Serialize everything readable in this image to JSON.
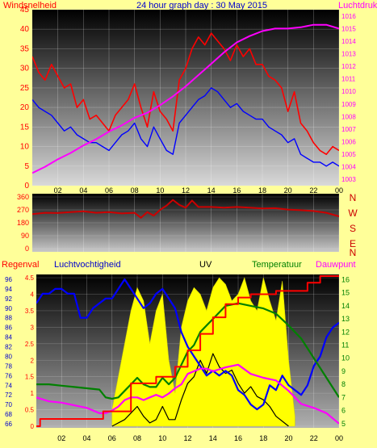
{
  "header": {
    "left_label": "Windsnelheid",
    "title": "24 hour graph day : 30 May 2015",
    "right_label": "Luchtdruk"
  },
  "lower_header": {
    "rain_label": "Regenval",
    "humidity_label": "Luchtvochtigheid",
    "uv_label": "UV",
    "temp_label": "Temperatuur",
    "dew_label": "Dauwpunt"
  },
  "colors": {
    "background": "#ffff99",
    "wind_gust": "#ff0000",
    "wind_avg": "#0000ff",
    "pressure": "#ff00ff",
    "direction": "#cc0000",
    "humidity": "#0000ff",
    "uv": "#ffff00",
    "temperature": "#008000",
    "dewpoint": "#ff00ff",
    "rain": "#ff0000",
    "solar": "#000000"
  },
  "chart_data": [
    {
      "type": "line",
      "x_ticks": [
        "02",
        "04",
        "06",
        "08",
        "10",
        "12",
        "14",
        "16",
        "18",
        "20",
        "22",
        "00"
      ],
      "ylabel": "Windsnelheid",
      "ylim": [
        0,
        45
      ],
      "y_ticks": [
        0,
        5,
        10,
        15,
        20,
        25,
        30,
        35,
        40,
        45
      ],
      "y2label": "Luchtdruk",
      "y2lim": [
        1002.5,
        1016.5
      ],
      "y2_ticks": [
        1003,
        1004,
        1005,
        1006,
        1007,
        1008,
        1009,
        1010,
        1011,
        1012,
        1013,
        1014,
        1015,
        1016
      ],
      "series": [
        {
          "key": "gust",
          "x": [
            0,
            0.5,
            1,
            1.5,
            2,
            2.5,
            3,
            3.5,
            4,
            4.5,
            5,
            5.5,
            6,
            6.5,
            7,
            7.5,
            8,
            8.5,
            9,
            9.5,
            10,
            10.5,
            11,
            11.5,
            12,
            12.5,
            13,
            13.5,
            14,
            14.5,
            15,
            15.5,
            16,
            16.5,
            17,
            17.5,
            18,
            18.5,
            19,
            19.5,
            20,
            20.5,
            21,
            21.5,
            22,
            22.5,
            23,
            23.5,
            24
          ],
          "values": [
            33,
            29,
            27,
            31,
            28,
            25,
            26,
            20,
            22,
            17,
            18,
            16,
            14,
            18,
            20,
            22,
            26,
            20,
            15,
            24,
            19,
            17,
            14,
            27,
            30,
            35,
            38,
            36,
            39,
            37,
            35,
            32,
            36,
            33,
            35,
            31,
            31,
            28,
            27,
            25,
            19,
            24,
            16,
            14,
            11,
            9,
            8,
            10,
            9
          ]
        },
        {
          "key": "avg",
          "x": [
            0,
            0.5,
            1,
            1.5,
            2,
            2.5,
            3,
            3.5,
            4,
            4.5,
            5,
            5.5,
            6,
            6.5,
            7,
            7.5,
            8,
            8.5,
            9,
            9.5,
            10,
            10.5,
            11,
            11.5,
            12,
            12.5,
            13,
            13.5,
            14,
            14.5,
            15,
            15.5,
            16,
            16.5,
            17,
            17.5,
            18,
            18.5,
            19,
            19.5,
            20,
            20.5,
            21,
            21.5,
            22,
            22.5,
            23,
            23.5,
            24
          ],
          "values": [
            22,
            20,
            19,
            18,
            16,
            14,
            15,
            13,
            12,
            11,
            11,
            10,
            9,
            11,
            13,
            14,
            16,
            12,
            10,
            15,
            12,
            9,
            8,
            16,
            18,
            20,
            22,
            23,
            25,
            24,
            22,
            20,
            21,
            19,
            18,
            17,
            17,
            15,
            14,
            13,
            11,
            12,
            8,
            7,
            6,
            6,
            5,
            6,
            5
          ]
        },
        {
          "key": "pressure",
          "x": [
            0,
            1,
            2,
            3,
            4,
            5,
            6,
            7,
            8,
            9,
            10,
            11,
            12,
            13,
            14,
            15,
            16,
            17,
            18,
            19,
            20,
            21,
            22,
            23,
            24
          ],
          "values": [
            1003.5,
            1004.0,
            1004.6,
            1005.1,
            1005.7,
            1006.2,
            1006.8,
            1007.3,
            1007.9,
            1008.3,
            1008.9,
            1009.6,
            1010.4,
            1011.3,
            1012.2,
            1013.1,
            1013.9,
            1014.4,
            1014.8,
            1015.0,
            1015.0,
            1015.1,
            1015.3,
            1015.3,
            1015.0
          ]
        }
      ]
    },
    {
      "type": "line",
      "x_ticks": [
        "02",
        "04",
        "06",
        "08",
        "10",
        "12",
        "14",
        "16",
        "18",
        "20",
        "22",
        "00"
      ],
      "y_ticks": [
        0,
        90,
        180,
        270,
        360
      ],
      "ylim": [
        0,
        360
      ],
      "direction_labels": [
        "N",
        "W",
        "S",
        "E",
        "N"
      ],
      "series": [
        {
          "key": "direction",
          "x": [
            0,
            1,
            2,
            3,
            4,
            5,
            6,
            7,
            8,
            8.5,
            9,
            9.5,
            10,
            10.5,
            11,
            11.5,
            12,
            12.5,
            13,
            14,
            15,
            16,
            17,
            18,
            19,
            20,
            21,
            22,
            23,
            24
          ],
          "values": [
            240,
            250,
            248,
            255,
            260,
            250,
            255,
            245,
            250,
            215,
            255,
            230,
            270,
            300,
            340,
            305,
            285,
            335,
            290,
            290,
            285,
            290,
            285,
            280,
            282,
            272,
            268,
            262,
            250,
            225
          ]
        }
      ]
    },
    {
      "type": "area",
      "x_ticks": [
        "02",
        "04",
        "06",
        "08",
        "10",
        "12",
        "14",
        "16",
        "18",
        "20",
        "22",
        "00"
      ],
      "rain_ticks": [
        0,
        0.5,
        1,
        1.5,
        2,
        2.5,
        3,
        3.5,
        4,
        4.5
      ],
      "rain_lim": [
        0,
        4.6
      ],
      "humidity_ticks": [
        66,
        68,
        70,
        72,
        74,
        76,
        78,
        80,
        82,
        84,
        86,
        88,
        90,
        92,
        94,
        96
      ],
      "humidity_lim": [
        65.5,
        97
      ],
      "temp_ticks": [
        5,
        6,
        7,
        8,
        9,
        10,
        11,
        12,
        13,
        14,
        15,
        16
      ],
      "temp_lim": [
        4.8,
        16.4
      ],
      "series": [
        {
          "key": "humidity",
          "x": [
            0,
            0.5,
            1,
            1.5,
            2,
            2.5,
            3,
            3.5,
            4,
            4.5,
            5,
            5.5,
            6,
            6.5,
            7,
            7.5,
            8,
            8.5,
            9,
            9.5,
            10,
            10.5,
            11,
            11.5,
            12,
            12.5,
            13,
            13.5,
            14,
            14.5,
            15,
            15.5,
            16,
            16.5,
            17,
            17.5,
            18,
            18.5,
            19,
            19.5,
            20,
            20.5,
            21,
            21.5,
            22,
            22.5,
            23,
            23.5,
            24
          ],
          "values": [
            91,
            93,
            93,
            94,
            94,
            93,
            93,
            88,
            88,
            90,
            91,
            92,
            92,
            94,
            96,
            94,
            92,
            90,
            91,
            93,
            94,
            92,
            90,
            85,
            82,
            80,
            78,
            76,
            77,
            76,
            77,
            76,
            73,
            72,
            70,
            69,
            70,
            74,
            73,
            76,
            74,
            73,
            72,
            74,
            78,
            80,
            84,
            86,
            87
          ]
        },
        {
          "key": "uv",
          "x": [
            6,
            6.5,
            7,
            7.5,
            8,
            8.5,
            9,
            9.5,
            10,
            10.5,
            11,
            11.5,
            12,
            12.5,
            13,
            13.5,
            14,
            14.5,
            15,
            15.5,
            16,
            16.5,
            17,
            17.5,
            18,
            18.5,
            19,
            19.5,
            20,
            20.5
          ],
          "values": [
            0.5,
            1.5,
            2.5,
            3.5,
            4.2,
            3.8,
            2.5,
            3.5,
            4.0,
            2.0,
            1.0,
            3.0,
            3.8,
            4.2,
            4.0,
            3.5,
            4.2,
            4.5,
            4.3,
            3.8,
            4.0,
            4.5,
            3.8,
            3.5,
            4.5,
            3.8,
            3.2,
            4.4,
            2.0,
            0.3
          ]
        },
        {
          "key": "temperature",
          "x": [
            0,
            1,
            2,
            3,
            4,
            5,
            5.5,
            6,
            6.5,
            7,
            7.5,
            8,
            8.5,
            9,
            9.5,
            10,
            10.5,
            11,
            11.5,
            12,
            12.5,
            13,
            13.5,
            14,
            15,
            16,
            17,
            18,
            19,
            20,
            21,
            22,
            23,
            24
          ],
          "values": [
            8.0,
            8.0,
            7.9,
            7.8,
            7.7,
            7.6,
            7.0,
            6.9,
            7.0,
            7.5,
            8.0,
            8.5,
            8.0,
            7.8,
            7.8,
            8.5,
            8.0,
            8.5,
            9.5,
            10.5,
            11.0,
            12.0,
            12.5,
            13.0,
            14.0,
            14.2,
            14.0,
            13.8,
            13.4,
            12.5,
            11.5,
            10.0,
            8.5,
            7.0
          ]
        },
        {
          "key": "dewpoint",
          "x": [
            0,
            1,
            2,
            3,
            4,
            5,
            5.5,
            6,
            6.5,
            7,
            7.5,
            8,
            8.5,
            9,
            9.5,
            10,
            10.5,
            11,
            11.5,
            12,
            12.5,
            13,
            13.5,
            14,
            15,
            16,
            17,
            18,
            19,
            20,
            21,
            22,
            23,
            24
          ],
          "values": [
            7.0,
            6.7,
            6.6,
            6.4,
            6.2,
            5.8,
            5.8,
            6.0,
            6.3,
            6.8,
            7.0,
            7.0,
            6.8,
            7.0,
            7.2,
            7.0,
            7.3,
            7.7,
            8.0,
            8.8,
            9.0,
            9.2,
            9.2,
            9.0,
            9.3,
            9.5,
            8.8,
            8.5,
            8.3,
            7.5,
            6.5,
            6.2,
            5.8,
            5.0
          ]
        },
        {
          "key": "rain",
          "x": [
            0,
            0.3,
            0.3,
            5.3,
            5.3,
            7.5,
            7.5,
            9.5,
            9.5,
            11,
            11,
            12,
            12,
            13,
            13,
            14,
            14,
            15,
            15,
            16,
            16,
            17,
            17,
            19,
            19,
            21.5,
            21.5,
            22.5,
            22.5,
            24
          ],
          "values": [
            0,
            0,
            0.22,
            0.22,
            0.45,
            0.45,
            1.3,
            1.3,
            1.5,
            1.5,
            1.8,
            1.8,
            2.3,
            2.3,
            2.8,
            2.8,
            3.3,
            3.3,
            3.7,
            3.7,
            3.9,
            3.9,
            4.0,
            4.0,
            4.1,
            4.1,
            4.35,
            4.35,
            4.55,
            4.55
          ]
        },
        {
          "key": "solar",
          "x": [
            6,
            7,
            7.5,
            8,
            8.5,
            9,
            9.5,
            10,
            10.5,
            11,
            11.5,
            12,
            12.5,
            13,
            13.5,
            14,
            14.5,
            15,
            15.5,
            16,
            16.5,
            17,
            17.5,
            18,
            18.5,
            19,
            20
          ],
          "values": [
            0,
            0.2,
            0.4,
            0.6,
            0.3,
            0.1,
            0.2,
            0.6,
            0.2,
            0.2,
            0.8,
            1.3,
            1.5,
            2.0,
            1.6,
            2.2,
            1.8,
            1.6,
            1.7,
            1.3,
            1.0,
            1.2,
            0.9,
            0.8,
            0.6,
            0.3,
            0
          ]
        }
      ]
    }
  ]
}
